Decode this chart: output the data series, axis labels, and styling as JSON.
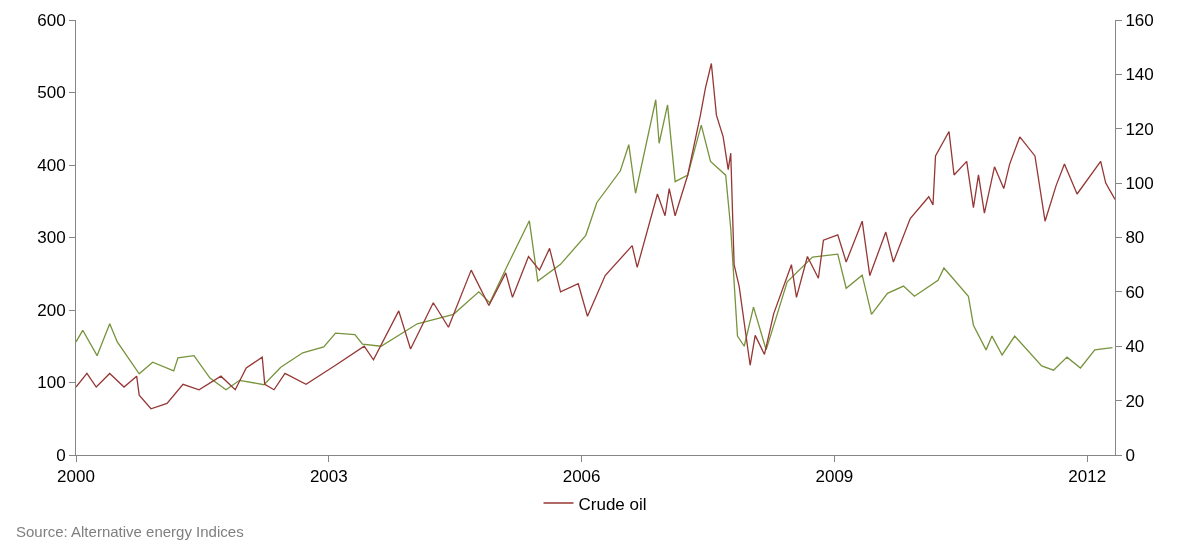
{
  "chart_data": {
    "type": "line",
    "xlim": [
      2000,
      2012.33
    ],
    "xticks": [
      2000,
      2003,
      2006,
      2009,
      2012
    ],
    "ylim": [
      0,
      600
    ],
    "yticks": [
      0,
      100,
      200,
      300,
      400,
      500,
      600
    ],
    "y2lim": [
      0,
      160
    ],
    "y2ticks": [
      0,
      20,
      40,
      60,
      80,
      100,
      120,
      140,
      160
    ],
    "grid": false,
    "legend": "bottom",
    "marker": "none",
    "line_style": "solid",
    "annotations": [
      "Source: Alternative energy Indices"
    ],
    "series": [
      {
        "color": "#77933c",
        "x": [
          2000.0,
          2000.08,
          2000.25,
          2000.4,
          2000.49,
          2000.75,
          2000.91,
          2001.16,
          2001.21,
          2001.4,
          2001.59,
          2001.78,
          2001.94,
          2002.23,
          2002.43,
          2002.69,
          2002.94,
          2003.08,
          2003.31,
          2003.4,
          2003.62,
          2004.05,
          2004.48,
          2004.78,
          2004.91,
          2005.11,
          2005.38,
          2005.48,
          2005.75,
          2006.05,
          2006.18,
          2006.46,
          2006.56,
          2006.64,
          2006.88,
          2006.92,
          2007.02,
          2007.11,
          2007.26,
          2007.42,
          2007.53,
          2007.71,
          2007.77,
          2007.85,
          2007.93,
          2008.04,
          2008.19,
          2008.44,
          2008.74,
          2009.04,
          2009.14,
          2009.33,
          2009.44,
          2009.63,
          2009.82,
          2009.95,
          2010.23,
          2010.3,
          2010.59,
          2010.65,
          2010.8,
          2010.87,
          2010.99,
          2011.14,
          2011.46,
          2011.6,
          2011.76,
          2011.92,
          2012.09,
          2012.3
        ],
        "values": [
          156,
          172,
          137,
          181,
          156,
          112,
          128,
          116,
          134,
          137,
          106,
          90,
          103,
          97,
          121,
          141,
          149,
          168,
          166,
          153,
          150,
          181,
          194,
          225,
          210,
          259,
          323,
          240,
          263,
          303,
          348,
          392,
          428,
          361,
          490,
          430,
          483,
          377,
          386,
          455,
          405,
          386,
          312,
          164,
          150,
          204,
          145,
          239,
          273,
          277,
          230,
          248,
          194,
          223,
          233,
          219,
          241,
          258,
          219,
          179,
          145,
          164,
          138,
          164,
          123,
          117,
          135,
          120,
          145,
          148
        ]
      },
      {
        "name": "Crude oil",
        "color": "#953735",
        "axis": "y2",
        "x": [
          2000.0,
          2000.13,
          2000.24,
          2000.4,
          2000.57,
          2000.72,
          2000.75,
          2000.89,
          2001.08,
          2001.27,
          2001.46,
          2001.72,
          2001.89,
          2002.02,
          2002.21,
          2002.24,
          2002.35,
          2002.48,
          2002.73,
          2003.08,
          2003.42,
          2003.53,
          2003.83,
          2003.97,
          2004.24,
          2004.42,
          2004.69,
          2004.9,
          2005.1,
          2005.18,
          2005.37,
          2005.5,
          2005.62,
          2005.75,
          2005.96,
          2006.07,
          2006.28,
          2006.6,
          2006.66,
          2006.9,
          2006.99,
          2007.04,
          2007.11,
          2007.26,
          2007.41,
          2007.47,
          2007.54,
          2007.6,
          2007.68,
          2007.74,
          2007.77,
          2007.81,
          2007.87,
          2008.0,
          2008.06,
          2008.17,
          2008.28,
          2008.49,
          2008.55,
          2008.68,
          2008.81,
          2008.87,
          2009.04,
          2009.14,
          2009.33,
          2009.42,
          2009.61,
          2009.7,
          2009.9,
          2010.12,
          2010.17,
          2010.2,
          2010.36,
          2010.42,
          2010.57,
          2010.65,
          2010.71,
          2010.78,
          2010.9,
          2011.01,
          2011.08,
          2011.2,
          2011.38,
          2011.5,
          2011.63,
          2011.73,
          2011.88,
          2012.16,
          2012.22,
          2012.33
        ],
        "values": [
          25,
          30,
          25,
          30,
          25,
          29,
          22,
          17,
          19,
          26,
          24,
          29,
          24,
          32,
          36,
          26,
          24,
          30,
          26,
          33,
          40,
          35,
          53,
          39,
          56,
          47,
          68,
          55,
          67,
          58,
          73,
          68,
          76,
          60,
          63,
          51,
          66,
          77,
          69,
          96,
          88,
          98,
          88,
          103,
          125,
          135,
          144,
          125,
          117,
          105,
          111,
          70,
          62,
          33,
          44,
          37,
          52,
          70,
          58,
          73,
          65,
          79,
          81,
          71,
          86,
          66,
          82,
          71,
          87,
          95,
          92,
          110,
          119,
          103,
          108,
          91,
          103,
          89,
          106,
          98,
          107,
          117,
          110,
          86,
          99,
          107,
          96,
          108,
          100,
          94
        ]
      }
    ]
  }
}
